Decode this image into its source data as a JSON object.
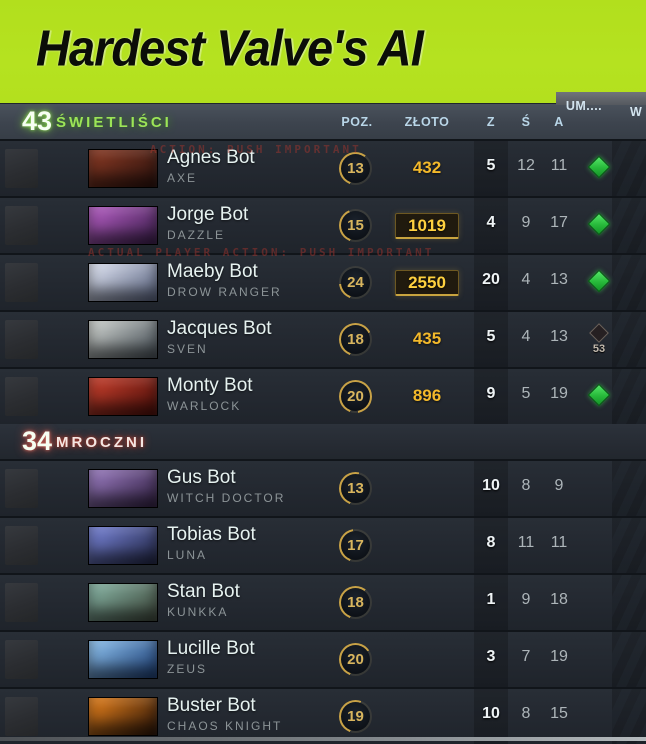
{
  "title": "Hardest Valve's AI",
  "columns": {
    "pos": "POZ.",
    "gold": "ZŁOTO",
    "kills": "Z",
    "deaths": "Ś",
    "assists": "A",
    "items": "UM....",
    "wards": "W"
  },
  "colors": {
    "banner_green": "#b5e220",
    "radiant_accent": "#9ce557",
    "dire_accent": "#e8564a",
    "gold_text": "#f3b92b",
    "item_green": "#27b93a",
    "header_label": "#b9d6e8"
  },
  "debug_lines": [
    {
      "text": "action: PUSH IMPORTANT"
    },
    {
      "text": "actual player action: PUSH IMPORTANT"
    }
  ],
  "teams": [
    {
      "id": "radiant",
      "score": "43",
      "name": "ŚWIETLIŚCI",
      "players": [
        {
          "name": "Agnes Bot",
          "hero": "AXE",
          "level": "13",
          "xp_pct": 55,
          "gold": "432",
          "gold_boxed": false,
          "kills": "5",
          "deaths": "12",
          "assists": "11",
          "item_status": "owned",
          "respawn": "",
          "portrait_colors": [
            "#8a3a24",
            "#2e130e"
          ]
        },
        {
          "name": "Jorge Bot",
          "hero": "DAZZLE",
          "level": "15",
          "xp_pct": 38,
          "gold": "1019",
          "gold_boxed": true,
          "kills": "4",
          "deaths": "9",
          "assists": "17",
          "item_status": "owned",
          "respawn": "",
          "portrait_colors": [
            "#b55ec4",
            "#3f2050"
          ]
        },
        {
          "name": "Maeby Bot",
          "hero": "DROW RANGER",
          "level": "24",
          "xp_pct": 18,
          "gold": "2550",
          "gold_boxed": true,
          "kills": "20",
          "deaths": "4",
          "assists": "13",
          "item_status": "owned",
          "respawn": "",
          "portrait_colors": [
            "#dfe4f2",
            "#5d6784"
          ]
        },
        {
          "name": "Jacques Bot",
          "hero": "SVEN",
          "level": "18",
          "xp_pct": 62,
          "gold": "435",
          "gold_boxed": false,
          "kills": "5",
          "deaths": "4",
          "assists": "13",
          "item_status": "dead",
          "respawn": "53",
          "portrait_colors": [
            "#cfd3cf",
            "#4b545c"
          ]
        },
        {
          "name": "Monty Bot",
          "hero": "WARLOCK",
          "level": "20",
          "xp_pct": 92,
          "gold": "896",
          "gold_boxed": false,
          "kills": "9",
          "deaths": "5",
          "assists": "19",
          "item_status": "owned",
          "respawn": "",
          "portrait_colors": [
            "#c8402d",
            "#4f0f0a"
          ]
        }
      ]
    },
    {
      "id": "dire",
      "score": "34",
      "name": "MROCZNI",
      "players": [
        {
          "name": "Gus Bot",
          "hero": "WITCH DOCTOR",
          "level": "13",
          "xp_pct": 48,
          "gold": null,
          "gold_boxed": false,
          "kills": "10",
          "deaths": "8",
          "assists": "9",
          "item_status": "none",
          "respawn": "",
          "portrait_colors": [
            "#9a7cc0",
            "#352347"
          ]
        },
        {
          "name": "Tobias Bot",
          "hero": "LUNA",
          "level": "17",
          "xp_pct": 42,
          "gold": null,
          "gold_boxed": false,
          "kills": "8",
          "deaths": "11",
          "assists": "11",
          "item_status": "none",
          "respawn": "",
          "portrait_colors": [
            "#7884d8",
            "#232848"
          ]
        },
        {
          "name": "Stan Bot",
          "hero": "KUNKKA",
          "level": "18",
          "xp_pct": 55,
          "gold": null,
          "gold_boxed": false,
          "kills": "1",
          "deaths": "9",
          "assists": "18",
          "item_status": "none",
          "respawn": "",
          "portrait_colors": [
            "#86b4a4",
            "#414b3e"
          ]
        },
        {
          "name": "Lucille Bot",
          "hero": "ZEUS",
          "level": "20",
          "xp_pct": 60,
          "gold": null,
          "gold_boxed": false,
          "kills": "3",
          "deaths": "7",
          "assists": "19",
          "item_status": "none",
          "respawn": "",
          "portrait_colors": [
            "#8ec2ee",
            "#1d3f77"
          ]
        },
        {
          "name": "Buster Bot",
          "hero": "CHAOS KNIGHT",
          "level": "19",
          "xp_pct": 50,
          "gold": null,
          "gold_boxed": false,
          "kills": "10",
          "deaths": "8",
          "assists": "15",
          "item_status": "none",
          "respawn": "",
          "portrait_colors": [
            "#e8821c",
            "#2c1508"
          ]
        }
      ]
    }
  ]
}
